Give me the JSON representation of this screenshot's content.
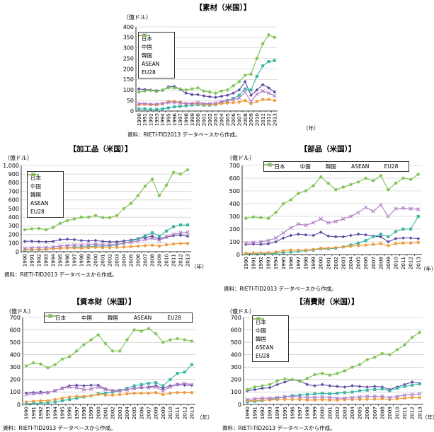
{
  "panels": [
    {
      "title": "【素材（米国）】",
      "unit": "（億ドル）",
      "year_unit": "（年）",
      "source": "資料：RIETI-TID2013 データベースから作成。"
    },
    {
      "title": "【加工品（米国）】",
      "unit": "（億ドル）",
      "year_unit": "（年）",
      "source": "資料：RIETI-TID2013 データベースから作成。"
    },
    {
      "title": "【部品（米国）】",
      "unit": "（億ドル）",
      "year_unit": "（年）",
      "source": "資料：RIETI-TID2013 データベースから作成。"
    },
    {
      "title": "【資本財（米国）】",
      "unit": "（億ドル）",
      "year_unit": "（年）",
      "source": "資料：RIETI-TID2013 データベースから作成。"
    },
    {
      "title": "【消費財（米国）】",
      "unit": "（億ドル）",
      "year_unit": "（年）",
      "source": "資料：RIETI-TID2013 データベースから作成。"
    }
  ],
  "legend_labels": [
    "日本",
    "中国",
    "韓国",
    "ASEAN",
    "EU28"
  ],
  "series_colors": [
    "#5b4aa3",
    "#3bb5a6",
    "#f29a3a",
    "#b07cc6",
    "#7cc251"
  ],
  "chart_data": [
    {
      "type": "line",
      "title": "【素材（米国）】",
      "ylabel": "（億ドル）",
      "xlabel": "（年）",
      "ylim": [
        0,
        400
      ],
      "yticks": [
        0,
        50,
        100,
        150,
        200,
        250,
        300,
        350,
        400
      ],
      "legend_position": "left",
      "grid": true,
      "x": [
        "1990",
        "1991",
        "1992",
        "1993",
        "1994",
        "1995",
        "1996",
        "1997",
        "1998",
        "1999",
        "2000",
        "2001",
        "2002",
        "2003",
        "2004",
        "2005",
        "2006",
        "2007",
        "2008",
        "2009",
        "2010",
        "2011",
        "2012",
        "2013"
      ],
      "series": [
        {
          "name": "日本",
          "values": [
            105,
            102,
            100,
            97,
            98,
            115,
            117,
            102,
            85,
            78,
            78,
            72,
            68,
            65,
            70,
            75,
            85,
            100,
            140,
            75,
            100,
            125,
            110,
            90
          ]
        },
        {
          "name": "中国",
          "values": [
            10,
            10,
            8,
            8,
            10,
            15,
            20,
            22,
            25,
            28,
            30,
            28,
            28,
            30,
            40,
            50,
            60,
            75,
            105,
            100,
            165,
            215,
            235,
            240
          ]
        },
        {
          "name": "韓国",
          "values": [
            30,
            32,
            30,
            30,
            35,
            45,
            45,
            42,
            35,
            35,
            35,
            32,
            30,
            32,
            35,
            38,
            40,
            42,
            50,
            35,
            45,
            55,
            55,
            50
          ]
        },
        {
          "name": "ASEAN",
          "values": [
            35,
            35,
            33,
            33,
            35,
            40,
            40,
            38,
            35,
            35,
            40,
            35,
            35,
            38,
            45,
            50,
            55,
            62,
            90,
            45,
            80,
            95,
            85,
            72
          ]
        },
        {
          "name": "EU28",
          "values": [
            90,
            95,
            98,
            92,
            100,
            110,
            110,
            105,
            100,
            105,
            110,
            95,
            90,
            85,
            95,
            100,
            120,
            140,
            170,
            175,
            250,
            320,
            362,
            350
          ]
        }
      ]
    },
    {
      "type": "line",
      "title": "【加工品（米国）】",
      "ylabel": "（億ドル）",
      "xlabel": "（年）",
      "ylim": [
        0,
        1000
      ],
      "yticks": [
        0,
        100,
        200,
        300,
        400,
        500,
        600,
        700,
        800,
        900,
        1000
      ],
      "legend_position": "left",
      "grid": true,
      "x": [
        "1990",
        "1991",
        "1992",
        "1993",
        "1994",
        "1995",
        "1996",
        "1997",
        "1998",
        "1999",
        "2000",
        "2001",
        "2002",
        "2003",
        "2004",
        "2005",
        "2006",
        "2007",
        "2008",
        "2009",
        "2010",
        "2011",
        "2012",
        "2013"
      ],
      "series": [
        {
          "name": "日本",
          "values": [
            120,
            122,
            118,
            115,
            120,
            140,
            145,
            140,
            130,
            125,
            130,
            120,
            115,
            115,
            125,
            135,
            150,
            165,
            180,
            150,
            170,
            185,
            190,
            180
          ]
        },
        {
          "name": "中国",
          "values": [
            20,
            25,
            25,
            28,
            35,
            40,
            45,
            50,
            55,
            60,
            65,
            65,
            70,
            80,
            100,
            120,
            150,
            185,
            220,
            180,
            240,
            290,
            310,
            310
          ]
        },
        {
          "name": "韓国",
          "values": [
            25,
            28,
            28,
            30,
            35,
            40,
            42,
            42,
            40,
            45,
            50,
            45,
            45,
            50,
            55,
            60,
            65,
            70,
            75,
            65,
            80,
            90,
            95,
            95
          ]
        },
        {
          "name": "ASEAN",
          "values": [
            40,
            45,
            48,
            50,
            55,
            65,
            70,
            75,
            75,
            80,
            90,
            80,
            80,
            85,
            100,
            110,
            125,
            140,
            155,
            130,
            170,
            200,
            220,
            225
          ]
        },
        {
          "name": "EU28",
          "values": [
            255,
            265,
            270,
            255,
            280,
            330,
            360,
            380,
            400,
            400,
            420,
            395,
            395,
            420,
            500,
            560,
            650,
            760,
            840,
            650,
            770,
            920,
            900,
            950
          ]
        }
      ]
    },
    {
      "type": "line",
      "title": "【部品（米国）】",
      "ylabel": "（億ドル）",
      "xlabel": "（年）",
      "ylim": [
        0,
        700
      ],
      "yticks": [
        0,
        100,
        200,
        300,
        400,
        500,
        600,
        700
      ],
      "legend_position": "top",
      "grid": true,
      "x": [
        "1990",
        "1991",
        "1992",
        "1993",
        "1994",
        "1995",
        "1996",
        "1997",
        "1998",
        "1999",
        "2000",
        "2001",
        "2002",
        "2003",
        "2004",
        "2005",
        "2006",
        "2007",
        "2008",
        "2009",
        "2010",
        "2011",
        "2012",
        "2013"
      ],
      "series": [
        {
          "name": "日本",
          "values": [
            80,
            82,
            80,
            85,
            100,
            130,
            150,
            160,
            155,
            150,
            175,
            145,
            140,
            140,
            150,
            160,
            155,
            145,
            140,
            100,
            125,
            130,
            130,
            125
          ]
        },
        {
          "name": "中国",
          "values": [
            5,
            5,
            6,
            8,
            10,
            15,
            20,
            25,
            30,
            35,
            45,
            45,
            50,
            60,
            75,
            90,
            110,
            140,
            160,
            140,
            180,
            200,
            200,
            300
          ]
        },
        {
          "name": "韓国",
          "values": [
            10,
            12,
            12,
            15,
            20,
            30,
            35,
            35,
            35,
            40,
            50,
            50,
            55,
            60,
            65,
            70,
            75,
            80,
            85,
            70,
            85,
            90,
            90,
            95
          ]
        },
        {
          "name": "ASEAN",
          "values": [
            90,
            95,
            100,
            110,
            130,
            170,
            210,
            240,
            230,
            250,
            280,
            250,
            260,
            280,
            300,
            330,
            370,
            340,
            390,
            300,
            360,
            365,
            360,
            355
          ]
        },
        {
          "name": "EU28",
          "values": [
            285,
            295,
            290,
            285,
            330,
            400,
            430,
            480,
            500,
            540,
            610,
            560,
            510,
            530,
            550,
            570,
            600,
            580,
            620,
            510,
            560,
            600,
            590,
            630
          ]
        }
      ]
    },
    {
      "type": "line",
      "title": "【資本財（米国）】",
      "ylabel": "（億ドル）",
      "xlabel": "（年）",
      "ylim": [
        0,
        700
      ],
      "yticks": [
        0,
        100,
        200,
        300,
        400,
        500,
        600,
        700
      ],
      "legend_position": "top",
      "grid": true,
      "x": [
        "1990",
        "1991",
        "1992",
        "1993",
        "1994",
        "1995",
        "1996",
        "1997",
        "1998",
        "1999",
        "2000",
        "2001",
        "2002",
        "2003",
        "2004",
        "2005",
        "2006",
        "2007",
        "2008",
        "2009",
        "2010",
        "2011",
        "2012",
        "2013"
      ],
      "series": [
        {
          "name": "日本",
          "values": [
            90,
            95,
            100,
            95,
            110,
            130,
            150,
            155,
            150,
            155,
            155,
            125,
            110,
            115,
            120,
            130,
            135,
            140,
            150,
            130,
            150,
            160,
            155,
            155
          ]
        },
        {
          "name": "中国",
          "values": [
            5,
            8,
            10,
            15,
            20,
            30,
            40,
            50,
            60,
            70,
            85,
            90,
            100,
            110,
            130,
            150,
            160,
            170,
            175,
            150,
            200,
            250,
            260,
            320
          ]
        },
        {
          "name": "韓国",
          "values": [
            20,
            25,
            30,
            30,
            40,
            50,
            60,
            65,
            65,
            70,
            80,
            75,
            75,
            80,
            85,
            90,
            90,
            90,
            95,
            80,
            90,
            95,
            95,
            95
          ]
        },
        {
          "name": "ASEAN",
          "values": [
            80,
            85,
            90,
            95,
            110,
            130,
            140,
            135,
            120,
            125,
            140,
            120,
            110,
            110,
            120,
            130,
            140,
            135,
            140,
            110,
            140,
            160,
            170,
            160
          ]
        },
        {
          "name": "EU28",
          "values": [
            310,
            335,
            325,
            295,
            320,
            365,
            385,
            430,
            480,
            520,
            560,
            490,
            430,
            430,
            520,
            600,
            590,
            610,
            570,
            500,
            520,
            530,
            520,
            510
          ]
        }
      ]
    },
    {
      "type": "line",
      "title": "【消費財（米国）】",
      "ylabel": "（億ドル）",
      "xlabel": "（年）",
      "ylim": [
        0,
        700
      ],
      "yticks": [
        0,
        100,
        200,
        300,
        400,
        500,
        600,
        700
      ],
      "legend_position": "left",
      "grid": true,
      "x": [
        "1990",
        "1991",
        "1992",
        "1993",
        "1994",
        "1995",
        "1996",
        "1997",
        "1998",
        "1999",
        "2000",
        "2001",
        "2002",
        "2003",
        "2004",
        "2005",
        "2006",
        "2007",
        "2008",
        "2009",
        "2010",
        "2011",
        "2012",
        "2013"
      ],
      "series": [
        {
          "name": "日本",
          "values": [
            110,
            120,
            130,
            135,
            160,
            180,
            200,
            190,
            160,
            150,
            160,
            150,
            145,
            140,
            150,
            145,
            140,
            145,
            140,
            120,
            140,
            160,
            180,
            170
          ]
        },
        {
          "name": "中国",
          "values": [
            20,
            25,
            30,
            40,
            50,
            60,
            70,
            75,
            80,
            85,
            90,
            85,
            90,
            95,
            100,
            110,
            115,
            120,
            125,
            110,
            130,
            145,
            155,
            165
          ]
        },
        {
          "name": "韓国",
          "values": [
            30,
            32,
            35,
            35,
            38,
            40,
            40,
            38,
            35,
            35,
            38,
            35,
            35,
            38,
            40,
            40,
            42,
            42,
            45,
            40,
            45,
            50,
            55,
            55
          ]
        },
        {
          "name": "ASEAN",
          "values": [
            40,
            45,
            50,
            50,
            55,
            60,
            65,
            60,
            55,
            55,
            60,
            55,
            50,
            50,
            55,
            60,
            65,
            65,
            65,
            55,
            65,
            75,
            80,
            85
          ]
        },
        {
          "name": "EU28",
          "values": [
            120,
            140,
            150,
            160,
            190,
            205,
            200,
            185,
            210,
            240,
            250,
            235,
            250,
            270,
            300,
            320,
            360,
            380,
            410,
            400,
            440,
            480,
            540,
            580
          ]
        }
      ]
    }
  ]
}
